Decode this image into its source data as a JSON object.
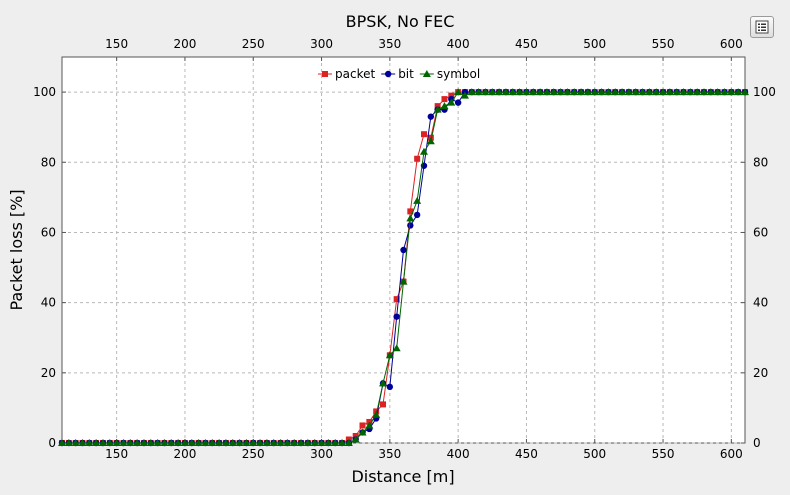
{
  "chart_data": {
    "type": "line",
    "title": "BPSK, No FEC",
    "xlabel": "Distance [m]",
    "ylabel": "Packet loss [%]",
    "xlim": [
      110,
      610
    ],
    "ylim": [
      0,
      110
    ],
    "xticks": [
      150,
      200,
      250,
      300,
      350,
      400,
      450,
      500,
      550,
      600
    ],
    "yticks": [
      0,
      20,
      40,
      60,
      80,
      100
    ],
    "grid": true,
    "legend_position": "top-center",
    "series": [
      {
        "name": "packet",
        "color": "#dd2222",
        "marker": "square",
        "x": [
          110,
          115,
          120,
          125,
          130,
          135,
          140,
          145,
          150,
          155,
          160,
          165,
          170,
          175,
          180,
          185,
          190,
          195,
          200,
          205,
          210,
          215,
          220,
          225,
          230,
          235,
          240,
          245,
          250,
          255,
          260,
          265,
          270,
          275,
          280,
          285,
          290,
          295,
          300,
          305,
          310,
          315,
          320,
          325,
          330,
          335,
          340,
          345,
          350,
          355,
          360,
          365,
          370,
          375,
          380,
          385,
          390,
          395,
          400,
          405,
          410,
          415,
          420,
          425,
          430,
          435,
          440,
          445,
          450,
          455,
          460,
          465,
          470,
          475,
          480,
          485,
          490,
          495,
          500,
          505,
          510,
          515,
          520,
          525,
          530,
          535,
          540,
          545,
          550,
          555,
          560,
          565,
          570,
          575,
          580,
          585,
          590,
          595,
          600,
          605,
          610
        ],
        "y": [
          0,
          0,
          0,
          0,
          0,
          0,
          0,
          0,
          0,
          0,
          0,
          0,
          0,
          0,
          0,
          0,
          0,
          0,
          0,
          0,
          0,
          0,
          0,
          0,
          0,
          0,
          0,
          0,
          0,
          0,
          0,
          0,
          0,
          0,
          0,
          0,
          0,
          0,
          0,
          0,
          0,
          0,
          1,
          2,
          5,
          6,
          9,
          11,
          25,
          41,
          46,
          66,
          81,
          88,
          87,
          96,
          98,
          99,
          100,
          100,
          100,
          100,
          100,
          100,
          100,
          100,
          100,
          100,
          100,
          100,
          100,
          100,
          100,
          100,
          100,
          100,
          100,
          100,
          100,
          100,
          100,
          100,
          100,
          100,
          100,
          100,
          100,
          100,
          100,
          100,
          100,
          100,
          100,
          100,
          100,
          100,
          100,
          100,
          100,
          100,
          100
        ]
      },
      {
        "name": "bit",
        "color": "#000099",
        "marker": "circle",
        "x": [
          110,
          115,
          120,
          125,
          130,
          135,
          140,
          145,
          150,
          155,
          160,
          165,
          170,
          175,
          180,
          185,
          190,
          195,
          200,
          205,
          210,
          215,
          220,
          225,
          230,
          235,
          240,
          245,
          250,
          255,
          260,
          265,
          270,
          275,
          280,
          285,
          290,
          295,
          300,
          305,
          310,
          315,
          320,
          325,
          330,
          335,
          340,
          345,
          350,
          355,
          360,
          365,
          370,
          375,
          380,
          385,
          390,
          395,
          400,
          405,
          410,
          415,
          420,
          425,
          430,
          435,
          440,
          445,
          450,
          455,
          460,
          465,
          470,
          475,
          480,
          485,
          490,
          495,
          500,
          505,
          510,
          515,
          520,
          525,
          530,
          535,
          540,
          545,
          550,
          555,
          560,
          565,
          570,
          575,
          580,
          585,
          590,
          595,
          600,
          605,
          610
        ],
        "y": [
          0,
          0,
          0,
          0,
          0,
          0,
          0,
          0,
          0,
          0,
          0,
          0,
          0,
          0,
          0,
          0,
          0,
          0,
          0,
          0,
          0,
          0,
          0,
          0,
          0,
          0,
          0,
          0,
          0,
          0,
          0,
          0,
          0,
          0,
          0,
          0,
          0,
          0,
          0,
          0,
          0,
          0,
          0,
          1,
          3,
          4,
          7,
          17,
          16,
          36,
          55,
          62,
          65,
          79,
          93,
          95,
          95,
          98,
          97,
          100,
          100,
          100,
          100,
          100,
          100,
          100,
          100,
          100,
          100,
          100,
          100,
          100,
          100,
          100,
          100,
          100,
          100,
          100,
          100,
          100,
          100,
          100,
          100,
          100,
          100,
          100,
          100,
          100,
          100,
          100,
          100,
          100,
          100,
          100,
          100,
          100,
          100,
          100,
          100,
          100,
          100
        ]
      },
      {
        "name": "symbol",
        "color": "#006600",
        "marker": "triangle",
        "x": [
          110,
          115,
          120,
          125,
          130,
          135,
          140,
          145,
          150,
          155,
          160,
          165,
          170,
          175,
          180,
          185,
          190,
          195,
          200,
          205,
          210,
          215,
          220,
          225,
          230,
          235,
          240,
          245,
          250,
          255,
          260,
          265,
          270,
          275,
          280,
          285,
          290,
          295,
          300,
          305,
          310,
          315,
          320,
          325,
          330,
          335,
          340,
          345,
          350,
          355,
          360,
          365,
          370,
          375,
          380,
          385,
          390,
          395,
          400,
          405,
          410,
          415,
          420,
          425,
          430,
          435,
          440,
          445,
          450,
          455,
          460,
          465,
          470,
          475,
          480,
          485,
          490,
          495,
          500,
          505,
          510,
          515,
          520,
          525,
          530,
          535,
          540,
          545,
          550,
          555,
          560,
          565,
          570,
          575,
          580,
          585,
          590,
          595,
          600,
          605,
          610
        ],
        "y": [
          0,
          0,
          0,
          0,
          0,
          0,
          0,
          0,
          0,
          0,
          0,
          0,
          0,
          0,
          0,
          0,
          0,
          0,
          0,
          0,
          0,
          0,
          0,
          0,
          0,
          0,
          0,
          0,
          0,
          0,
          0,
          0,
          0,
          0,
          0,
          0,
          0,
          0,
          0,
          0,
          0,
          0,
          0,
          1,
          3,
          5,
          8,
          17,
          25,
          27,
          46,
          64,
          69,
          83,
          86,
          95,
          96,
          97,
          100,
          99,
          100,
          100,
          100,
          100,
          100,
          100,
          100,
          100,
          100,
          100,
          100,
          100,
          100,
          100,
          100,
          100,
          100,
          100,
          100,
          100,
          100,
          100,
          100,
          100,
          100,
          100,
          100,
          100,
          100,
          100,
          100,
          100,
          100,
          100,
          100,
          100,
          100,
          100,
          100,
          100,
          100
        ]
      }
    ]
  },
  "ui": {
    "menu_icon": "list-menu-icon"
  }
}
